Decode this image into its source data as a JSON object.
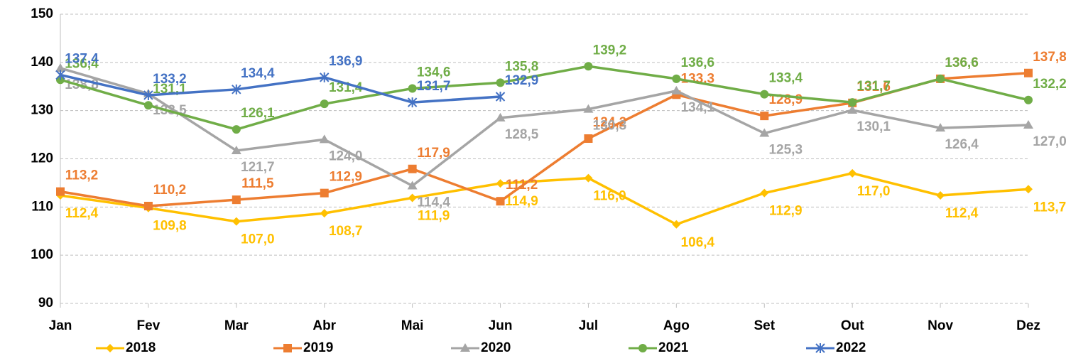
{
  "chart_data": {
    "type": "line",
    "categories": [
      "Jan",
      "Fev",
      "Mar",
      "Abr",
      "Mai",
      "Jun",
      "Jul",
      "Ago",
      "Set",
      "Out",
      "Nov",
      "Dez"
    ],
    "ylim": [
      90,
      150
    ],
    "yticks": [
      90,
      100,
      110,
      120,
      130,
      140,
      150
    ],
    "grid": true,
    "legend": "bottom",
    "series": [
      {
        "name": "2018",
        "color": "#FFC000",
        "marker": "diamond",
        "values": [
          112.4,
          109.8,
          107.0,
          108.7,
          111.9,
          114.9,
          116.0,
          106.4,
          112.9,
          117.0,
          112.4,
          113.7
        ],
        "value_labels": [
          "112,4",
          "109,8",
          "107,0",
          "108,7",
          "111,9",
          "114,9",
          "116,0",
          "106,4",
          "112,9",
          "117,0",
          "112,4",
          "113,7"
        ]
      },
      {
        "name": "2019",
        "color": "#ED7D31",
        "marker": "square",
        "values": [
          113.2,
          110.2,
          111.5,
          112.9,
          117.9,
          111.2,
          124.2,
          133.3,
          128.9,
          131.6,
          136.6,
          137.8
        ],
        "value_labels": [
          "113,2",
          "110,2",
          "111,5",
          "112,9",
          "117,9",
          "111,2",
          "124,2",
          "133,3",
          "128,9",
          "131,6",
          "136,6",
          "137,8"
        ]
      },
      {
        "name": "2020",
        "color": "#A5A5A5",
        "marker": "triangle",
        "values": [
          138.8,
          133.5,
          121.7,
          124.0,
          114.4,
          128.5,
          130.3,
          134.1,
          125.3,
          130.1,
          126.4,
          127.0
        ],
        "value_labels": [
          "138,8",
          "133,5",
          "121,7",
          "124,0",
          "114,4",
          "128,5",
          "130,3",
          "134,1",
          "125,3",
          "130,1",
          "126,4",
          "127,0"
        ]
      },
      {
        "name": "2021",
        "color": "#70AD47",
        "marker": "circle",
        "values": [
          136.4,
          131.1,
          126.1,
          131.4,
          134.6,
          135.8,
          139.2,
          136.6,
          133.4,
          131.7,
          136.6,
          132.2
        ],
        "value_labels": [
          "136,4",
          "131,1",
          "126,1",
          "131,4",
          "134,6",
          "135,8",
          "139,2",
          "136,6",
          "133,4",
          "131,7",
          "136,6",
          "132,2"
        ]
      },
      {
        "name": "2022",
        "color": "#4472C4",
        "marker": "star",
        "values": [
          137.4,
          133.2,
          134.4,
          136.9,
          131.7,
          132.9,
          null,
          null,
          null,
          null,
          null,
          null
        ],
        "value_labels": [
          "137,4",
          "133,2",
          "134,4",
          "136,9",
          "131,7",
          "132,9",
          null,
          null,
          null,
          null,
          null,
          null
        ]
      }
    ]
  }
}
